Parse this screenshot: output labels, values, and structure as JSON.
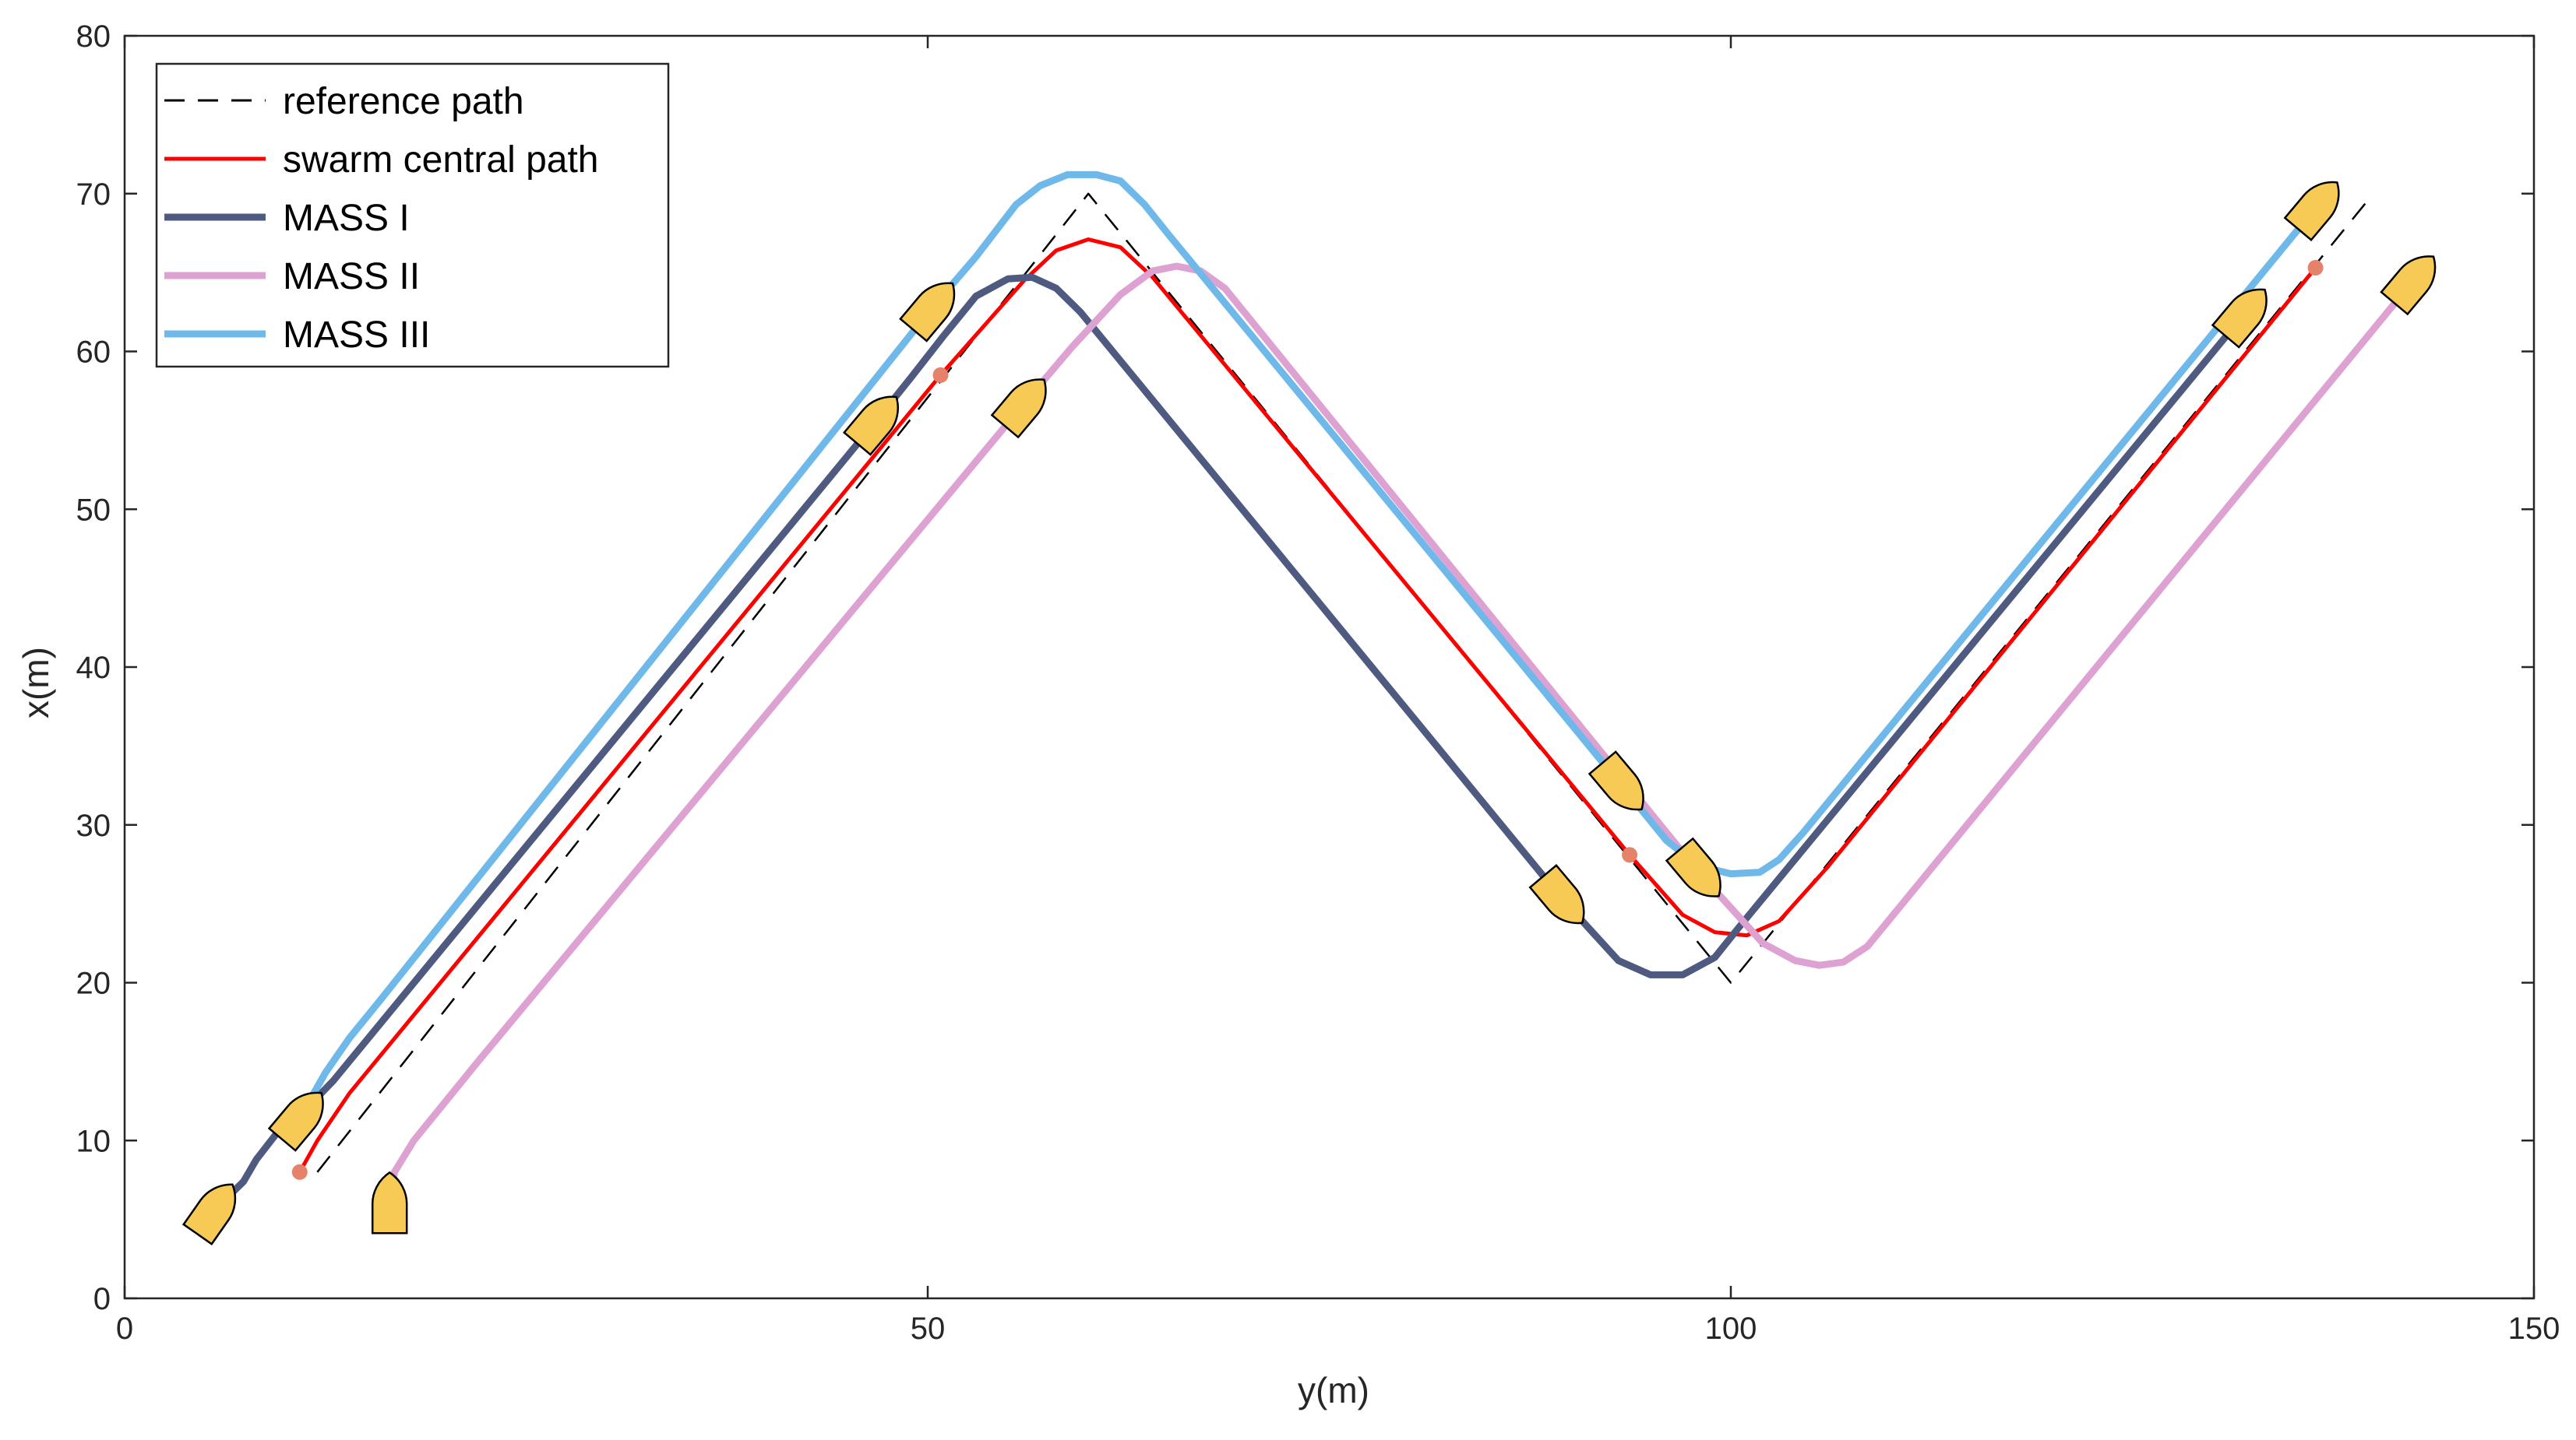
{
  "chart_data": {
    "type": "line",
    "title": "",
    "xlabel": "y(m)",
    "ylabel": "x(m)",
    "xlim": [
      0,
      150
    ],
    "ylim": [
      0,
      80
    ],
    "xticks": [
      0,
      50,
      100,
      150
    ],
    "yticks": [
      0,
      10,
      20,
      30,
      40,
      50,
      60,
      70,
      80
    ],
    "grid": false,
    "legend_position": "top-left",
    "series": [
      {
        "name": "reference path",
        "color": "#000000",
        "style": "dashed",
        "points": [
          [
            12,
            8
          ],
          [
            60,
            70
          ],
          [
            100,
            20
          ],
          [
            140,
            70
          ]
        ]
      },
      {
        "name": "swarm central path",
        "color": "#ff0000",
        "style": "solid",
        "points": [
          [
            10.9,
            8
          ],
          [
            12,
            10
          ],
          [
            14,
            13
          ],
          [
            50.8,
            58.5
          ],
          [
            56,
            64.5
          ],
          [
            58,
            66.4
          ],
          [
            60,
            67.1
          ],
          [
            62,
            66.6
          ],
          [
            64,
            64.7
          ],
          [
            93.7,
            28.1
          ],
          [
            97,
            24.3
          ],
          [
            99,
            23.2
          ],
          [
            101,
            23
          ],
          [
            103,
            23.9
          ],
          [
            106,
            27.3
          ],
          [
            136.4,
            65.3
          ]
        ]
      },
      {
        "name": "MASS I",
        "color": "#4f5a80",
        "style": "solid",
        "points": [
          [
            5.6,
            5.6
          ],
          [
            7.4,
            7.4
          ],
          [
            8.2,
            8.8
          ],
          [
            9.5,
            10.5
          ],
          [
            11.3,
            12
          ],
          [
            13,
            13.8
          ],
          [
            46.8,
            55.6
          ],
          [
            49,
            58.4
          ],
          [
            51,
            61
          ],
          [
            53,
            63.5
          ],
          [
            55,
            64.6
          ],
          [
            56.5,
            64.7
          ],
          [
            58,
            64
          ],
          [
            59.5,
            62.5
          ],
          [
            89.5,
            25.3
          ],
          [
            93,
            21.4
          ],
          [
            95,
            20.5
          ],
          [
            97,
            20.5
          ],
          [
            99,
            21.6
          ],
          [
            100.5,
            23.5
          ],
          [
            132,
            62.4
          ]
        ]
      },
      {
        "name": "MASS II",
        "color": "#dda2d2",
        "style": "solid",
        "points": [
          [
            16.5,
            6
          ],
          [
            16.8,
            8
          ],
          [
            18,
            10
          ],
          [
            20,
            12.5
          ],
          [
            22,
            15
          ],
          [
            56,
            56.7
          ],
          [
            59,
            60.3
          ],
          [
            62,
            63.6
          ],
          [
            64,
            65.1
          ],
          [
            65.5,
            65.4
          ],
          [
            67,
            65.1
          ],
          [
            68.5,
            64
          ],
          [
            98,
            27
          ],
          [
            102,
            22.5
          ],
          [
            104,
            21.4
          ],
          [
            105.5,
            21.1
          ],
          [
            107,
            21.3
          ],
          [
            108.5,
            22.3
          ],
          [
            142.5,
            64.5
          ]
        ]
      },
      {
        "name": "MASS III",
        "color": "#6fb8ea",
        "style": "solid",
        "points": [
          [
            11,
            11.5
          ],
          [
            11.5,
            12.5
          ],
          [
            12.5,
            14.3
          ],
          [
            14,
            16.5
          ],
          [
            16,
            19
          ],
          [
            50.3,
            62.8
          ],
          [
            53,
            66
          ],
          [
            55.5,
            69.3
          ],
          [
            57,
            70.5
          ],
          [
            58.7,
            71.2
          ],
          [
            60.5,
            71.2
          ],
          [
            62,
            70.8
          ],
          [
            63.5,
            69.3
          ],
          [
            65,
            67.4
          ],
          [
            93.2,
            32.5
          ],
          [
            96,
            29
          ],
          [
            98,
            27.4
          ],
          [
            100,
            26.9
          ],
          [
            101.8,
            27
          ],
          [
            103,
            27.8
          ],
          [
            104.5,
            29.5
          ],
          [
            136.5,
            69.2
          ]
        ]
      }
    ],
    "markers": {
      "central_points": [
        [
          10.9,
          8
        ],
        [
          50.8,
          58.5
        ],
        [
          93.7,
          28.1
        ],
        [
          136.4,
          65.3
        ]
      ],
      "central_point_color": "#e7826a",
      "ship_color": "#f7c955",
      "ships": [
        {
          "series": "MASS I",
          "x": 5.6,
          "y": 5.6,
          "heading_deg": 35
        },
        {
          "series": "MASS I",
          "x": 46.8,
          "y": 55.6,
          "heading_deg": 40
        },
        {
          "series": "MASS I",
          "x": 89.5,
          "y": 25.3,
          "heading_deg": 140
        },
        {
          "series": "MASS I",
          "x": 132,
          "y": 62.4,
          "heading_deg": 40
        },
        {
          "series": "MASS II",
          "x": 16.5,
          "y": 6,
          "heading_deg": 0
        },
        {
          "series": "MASS II",
          "x": 56,
          "y": 56.7,
          "heading_deg": 40
        },
        {
          "series": "MASS II",
          "x": 98,
          "y": 27,
          "heading_deg": 140
        },
        {
          "series": "MASS II",
          "x": 142.5,
          "y": 64.5,
          "heading_deg": 40
        },
        {
          "series": "MASS III",
          "x": 11,
          "y": 11.5,
          "heading_deg": 40
        },
        {
          "series": "MASS III",
          "x": 50.3,
          "y": 62.8,
          "heading_deg": 40
        },
        {
          "series": "MASS III",
          "x": 93.2,
          "y": 32.5,
          "heading_deg": 140
        },
        {
          "series": "MASS III",
          "x": 136.5,
          "y": 69.2,
          "heading_deg": 40
        }
      ]
    }
  }
}
